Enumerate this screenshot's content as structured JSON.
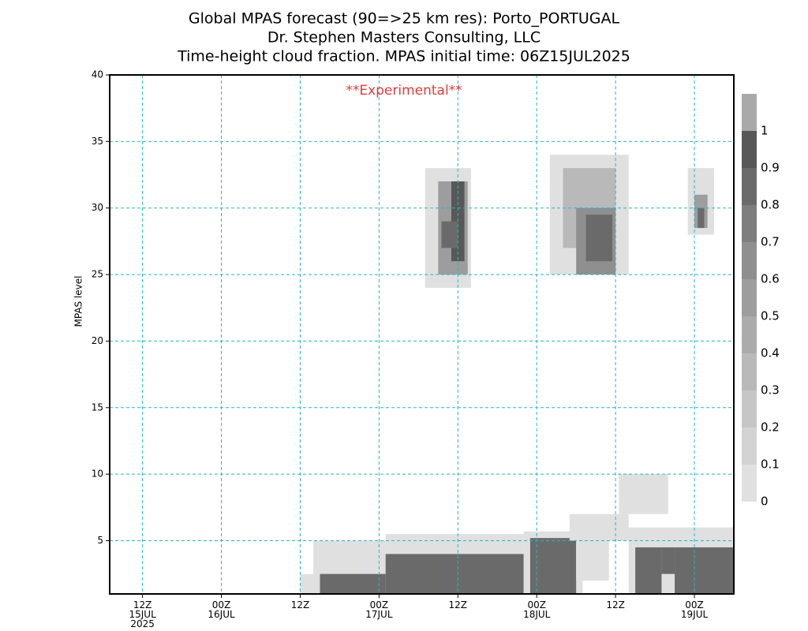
{
  "chart_data": {
    "type": "contour",
    "title": [
      "Global MPAS forecast (90=>25 km res): Porto_PORTUGAL",
      "Dr. Stephen Masters Consulting, LLC",
      "Time-height cloud fraction.   MPAS initial time: 06Z15JUL2025"
    ],
    "annotation": "**Experimental**",
    "y_label": "MPAS level",
    "xlim": [
      1,
      96
    ],
    "xticks": [
      {
        "value": 6,
        "label": "12Z\n15JUL\n2025"
      },
      {
        "value": 18,
        "label": "00Z\n16JUL"
      },
      {
        "value": 30,
        "label": "12Z"
      },
      {
        "value": 42,
        "label": "00Z\n17JUL"
      },
      {
        "value": 54,
        "label": "12Z"
      },
      {
        "value": 66,
        "label": "00Z\n18JUL"
      },
      {
        "value": 78,
        "label": "12Z"
      },
      {
        "value": 90,
        "label": "00Z\n19JUL"
      }
    ],
    "ylim": [
      1,
      40
    ],
    "yticks": [
      5,
      10,
      15,
      20,
      25,
      30,
      35,
      40
    ],
    "grid": true,
    "grid_color": "#20b8c8",
    "levels": [
      0,
      0.1,
      0.2,
      0.3,
      0.4,
      0.5,
      0.6,
      0.7,
      0.8,
      0.9,
      1
    ],
    "colors": [
      "#e0e0e0",
      "#d3d3d3",
      "#c6c6c6",
      "#b9b9b9",
      "#ababab",
      "#9d9d9d",
      "#8f8f8f",
      "#7e7e7e",
      "#6a6a6a",
      "#585858",
      "#a9a9a9"
    ],
    "cells": [
      {
        "x": [
          30,
          33
        ],
        "y": [
          1,
          2.5
        ],
        "v": 0.05
      },
      {
        "x": [
          32,
          43
        ],
        "y": [
          1,
          5
        ],
        "v": 0.05
      },
      {
        "x": [
          43,
          64
        ],
        "y": [
          1,
          5.5
        ],
        "v": 0.05
      },
      {
        "x": [
          33,
          43
        ],
        "y": [
          1,
          2.5
        ],
        "v": 0.85
      },
      {
        "x": [
          43,
          65
        ],
        "y": [
          1,
          4
        ],
        "v": 0.85
      },
      {
        "x": [
          64,
          73
        ],
        "y": [
          1,
          5.7
        ],
        "v": 0.05
      },
      {
        "x": [
          65,
          72
        ],
        "y": [
          1,
          5.2
        ],
        "v": 0.85
      },
      {
        "x": [
          72,
          77
        ],
        "y": [
          2,
          7
        ],
        "v": 0.05
      },
      {
        "x": [
          71,
          80
        ],
        "y": [
          5,
          7
        ],
        "v": 0.05
      },
      {
        "x": [
          78.5,
          86
        ],
        "y": [
          7,
          10
        ],
        "v": 0.05
      },
      {
        "x": [
          78,
          96
        ],
        "y": [
          5,
          6
        ],
        "v": 0.05
      },
      {
        "x": [
          80,
          96
        ],
        "y": [
          1,
          5
        ],
        "v": 0.05
      },
      {
        "x": [
          81,
          85
        ],
        "y": [
          1,
          4.5
        ],
        "v": 0.85
      },
      {
        "x": [
          87,
          96
        ],
        "y": [
          1,
          4.5
        ],
        "v": 0.85
      },
      {
        "x": [
          85,
          87
        ],
        "y": [
          2.5,
          4.5
        ],
        "v": 0.85
      },
      {
        "x": [
          49,
          56
        ],
        "y": [
          24,
          33
        ],
        "v": 0.05
      },
      {
        "x": [
          51,
          55.5
        ],
        "y": [
          25,
          32
        ],
        "v": 0.55
      },
      {
        "x": [
          53,
          55
        ],
        "y": [
          26,
          32
        ],
        "v": 0.95
      },
      {
        "x": [
          51.5,
          54
        ],
        "y": [
          27,
          29
        ],
        "v": 0.85
      },
      {
        "x": [
          68,
          80
        ],
        "y": [
          25,
          34
        ],
        "v": 0.05
      },
      {
        "x": [
          70,
          78
        ],
        "y": [
          27,
          33
        ],
        "v": 0.35
      },
      {
        "x": [
          72,
          78
        ],
        "y": [
          25,
          30
        ],
        "v": 0.65
      },
      {
        "x": [
          73.5,
          77.5
        ],
        "y": [
          26,
          29.5
        ],
        "v": 0.85
      },
      {
        "x": [
          89,
          93
        ],
        "y": [
          28,
          33
        ],
        "v": 0.05
      },
      {
        "x": [
          90,
          92
        ],
        "y": [
          28.5,
          31
        ],
        "v": 0.55
      },
      {
        "x": [
          90.5,
          91.5
        ],
        "y": [
          28.5,
          30
        ],
        "v": 0.85
      }
    ]
  }
}
